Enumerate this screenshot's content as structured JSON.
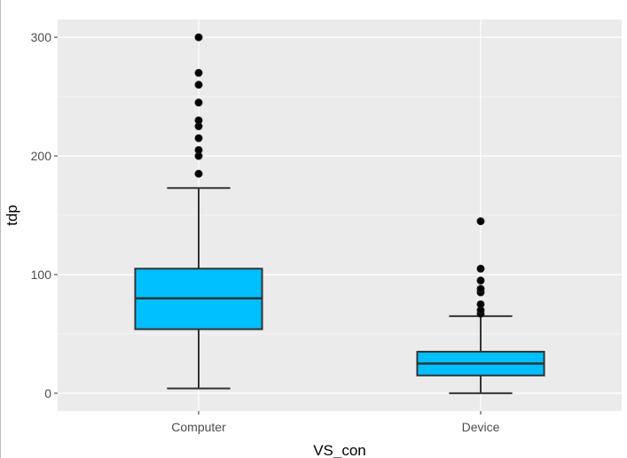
{
  "chart_data": {
    "type": "box",
    "title": "",
    "xlabel": "VS_con",
    "ylabel": "tdp",
    "ylim": [
      -15,
      315
    ],
    "yticks": [
      0,
      100,
      200,
      300
    ],
    "grid": true,
    "categories": [
      "Computer",
      "Device"
    ],
    "boxes": [
      {
        "category": "Computer",
        "whisker_low": 4,
        "q1": 54,
        "median": 80,
        "q3": 105,
        "whisker_high": 173,
        "outliers": [
          185,
          200,
          205,
          215,
          225,
          230,
          245,
          260,
          270,
          300
        ]
      },
      {
        "category": "Device",
        "whisker_low": 0,
        "q1": 15,
        "median": 25,
        "q3": 35,
        "whisker_high": 65,
        "outliers": [
          67,
          70,
          75,
          85,
          88,
          95,
          105,
          145
        ]
      }
    ],
    "colors": {
      "panel": "#ebebeb",
      "grid": "#ffffff",
      "box_fill": "#00bfff",
      "line": "#333333",
      "outlier": "#000000"
    }
  }
}
